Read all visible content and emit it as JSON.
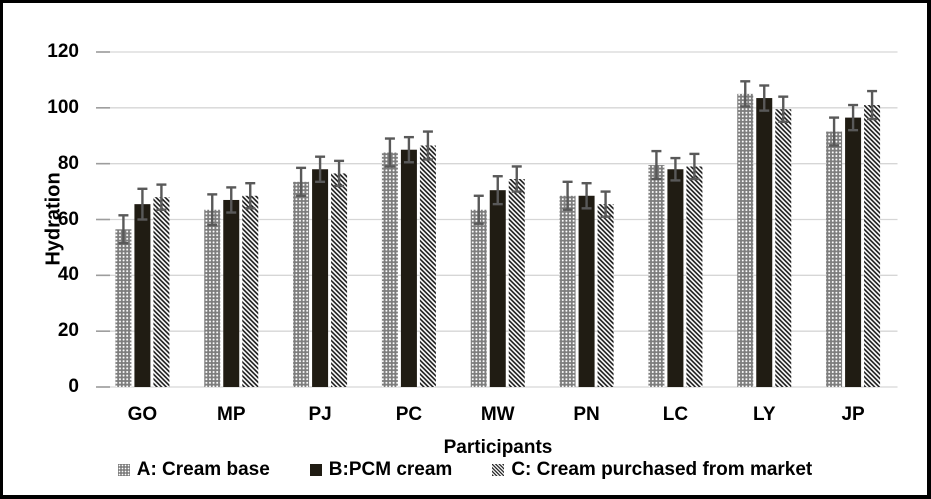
{
  "chart_data": {
    "type": "bar",
    "title": "",
    "xlabel": "Participants",
    "ylabel": "Hydration",
    "categories": [
      "GO",
      "MP",
      "PJ",
      "PC",
      "MW",
      "PN",
      "LC",
      "LY",
      "JP"
    ],
    "series": [
      {
        "name": "A: Cream base",
        "style": "dots",
        "values": [
          56.5,
          63.5,
          73.5,
          84,
          63.5,
          68.5,
          79.5,
          105,
          91.5
        ],
        "errors": [
          5,
          5.5,
          5,
          5,
          5,
          5,
          5,
          4.5,
          5
        ]
      },
      {
        "name": "B:PCM cream",
        "style": "solid",
        "values": [
          65.5,
          67,
          78,
          85,
          70.5,
          68.5,
          78,
          103.5,
          96.5
        ],
        "errors": [
          5.5,
          4.5,
          4.5,
          4.5,
          5,
          4.5,
          4,
          4.5,
          4.5
        ]
      },
      {
        "name": "C: Cream purchased from market",
        "style": "hatch",
        "values": [
          68,
          68.5,
          76.5,
          86.5,
          74.5,
          65.5,
          79,
          99.5,
          101
        ],
        "errors": [
          4.5,
          4.5,
          4.5,
          5,
          4.5,
          4.5,
          4.5,
          4.5,
          5
        ]
      }
    ],
    "yticks": [
      0,
      20,
      40,
      60,
      80,
      100,
      120
    ],
    "ylim": [
      0,
      120
    ],
    "grid": true,
    "legend_position": "bottom",
    "colors": {
      "solid_bar": "#201c13",
      "dots_bar_bg": "#7d7d7d",
      "dots_dot": "#ffffff",
      "hatch_line": "#1a1a1a",
      "hatch_bg": "#ffffff",
      "error_bar": "#595959",
      "gridline": "#d6d6d6",
      "tick": "#9d9d9d",
      "text": "#000000"
    }
  }
}
